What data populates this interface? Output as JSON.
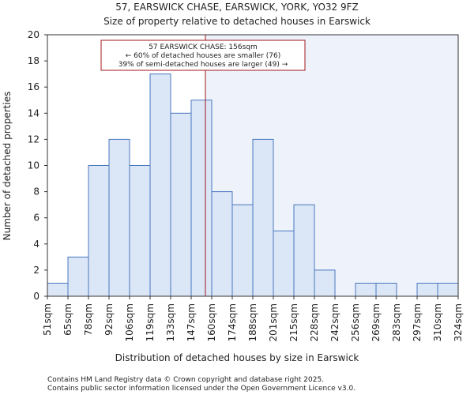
{
  "chart_data": {
    "type": "bar",
    "title_line1": "57, EARSWICK CHASE, EARSWICK, YORK, YO32 9FZ",
    "title_line2": "Size of property relative to detached houses in Earswick",
    "xlabel": "Distribution of detached houses by size in Earswick",
    "ylabel": "Number of detached properties",
    "bin_edges": [
      51,
      65,
      78,
      92,
      106,
      119,
      133,
      147,
      160,
      174,
      188,
      201,
      215,
      228,
      242,
      256,
      269,
      283,
      297,
      310,
      324
    ],
    "tick_labels": [
      "51sqm",
      "65sqm",
      "78sqm",
      "92sqm",
      "106sqm",
      "119sqm",
      "133sqm",
      "147sqm",
      "160sqm",
      "174sqm",
      "188sqm",
      "201sqm",
      "215sqm",
      "228sqm",
      "242sqm",
      "256sqm",
      "269sqm",
      "283sqm",
      "297sqm",
      "310sqm",
      "324sqm"
    ],
    "values": [
      1,
      3,
      10,
      12,
      10,
      17,
      14,
      15,
      8,
      7,
      12,
      5,
      7,
      2,
      0,
      1,
      1,
      0,
      1,
      1
    ],
    "ylim": [
      0,
      20
    ],
    "yticks": [
      "0",
      "2",
      "4",
      "6",
      "8",
      "10",
      "12",
      "14",
      "16",
      "18",
      "20"
    ],
    "property_size": 156,
    "annotation": {
      "line1": "57 EARSWICK CHASE: 156sqm",
      "line2": "← 60% of detached houses are smaller (76)",
      "line3": "39% of semi-detached houses are larger (49) →"
    },
    "colors": {
      "bar_fill": "#dbe6f6",
      "bar_stroke": "#4a78c0",
      "marker": "#a01818",
      "highlight_bg": "#eef2fb"
    }
  },
  "footer": {
    "line1": "Contains HM Land Registry data © Crown copyright and database right 2025.",
    "line2": "Contains public sector information licensed under the Open Government Licence v3.0."
  }
}
